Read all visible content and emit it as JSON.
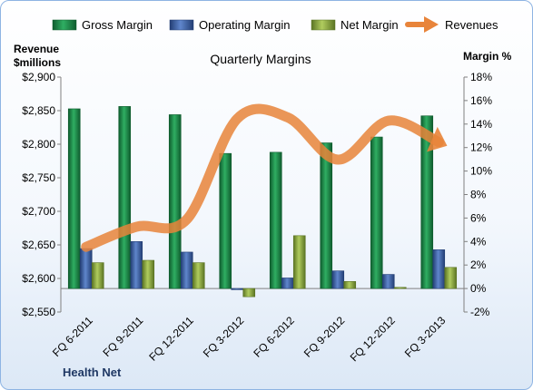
{
  "company": "Health Net",
  "chart_data": {
    "type": "bar",
    "title": "Quarterly Margins",
    "categories": [
      "FQ 6-2011",
      "FQ 9-2011",
      "FQ 12-2011",
      "FQ 3-2012",
      "FQ 6-2012",
      "FQ 9-2012",
      "FQ 12-2012",
      "FQ 3-2013"
    ],
    "left_axis": {
      "title_line1": "Revenue",
      "title_line2": "$millions",
      "range": [
        2550,
        2900
      ],
      "ticks": [
        2550,
        2600,
        2650,
        2700,
        2750,
        2800,
        2850,
        2900
      ],
      "tick_labels": [
        "$2,550",
        "$2,600",
        "$2,650",
        "$2,700",
        "$2,750",
        "$2,800",
        "$2,850",
        "$2,900"
      ]
    },
    "right_axis": {
      "title": "Margin %",
      "range": [
        -2,
        18
      ],
      "ticks": [
        -2,
        0,
        2,
        4,
        6,
        8,
        10,
        12,
        14,
        16,
        18
      ],
      "tick_labels": [
        "-2%",
        "0%",
        "2%",
        "4%",
        "6%",
        "8%",
        "10%",
        "12%",
        "14%",
        "16%",
        "18%"
      ]
    },
    "grid": false,
    "legend": "top",
    "series": [
      {
        "name": "Gross Margin",
        "type": "bar",
        "axis": "right",
        "color": "#1e8a4a",
        "values": [
          15.3,
          15.5,
          14.8,
          11.5,
          11.6,
          12.4,
          12.9,
          14.7
        ]
      },
      {
        "name": "Operating Margin",
        "type": "bar",
        "axis": "right",
        "color": "#3e64a8",
        "values": [
          3.4,
          4.0,
          3.1,
          -0.1,
          0.9,
          1.5,
          1.2,
          3.3
        ]
      },
      {
        "name": "Net Margin",
        "type": "bar",
        "axis": "right",
        "color": "#8fae3e",
        "values": [
          2.2,
          2.4,
          2.2,
          -0.7,
          4.5,
          0.6,
          0.1,
          1.8
        ]
      },
      {
        "name": "Revenues",
        "type": "line",
        "axis": "left",
        "color": "#e8843a",
        "values": [
          2647,
          2677,
          2688,
          2838,
          2840,
          2777,
          2835,
          2803
        ]
      }
    ]
  }
}
